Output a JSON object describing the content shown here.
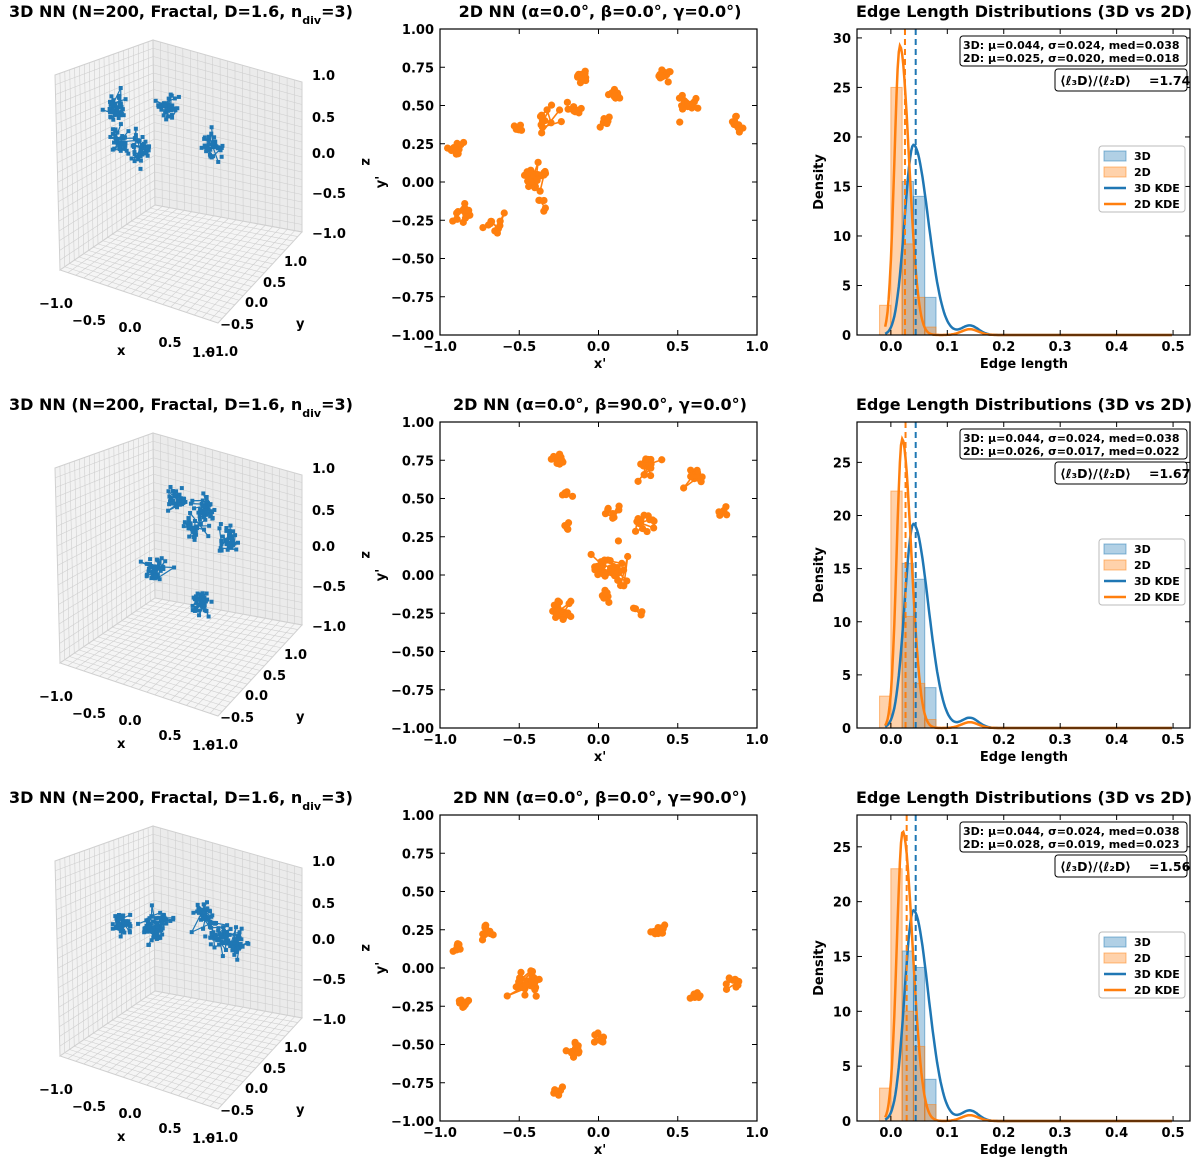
{
  "colors": {
    "c3d": "#1f77b4",
    "c2d": "#ff7f0e"
  },
  "chart_data": [
    {
      "type": "scatter",
      "kind": "3d-network",
      "title_main": "3D NN (N=200, Fractal, D=1.6, n",
      "title_sub": "div",
      "title_end": "=3)",
      "xlabel": "x",
      "ylabel": "y",
      "zlabel": "z",
      "x_ticks": [
        "−1.0",
        "−0.5",
        "0.0",
        "0.5",
        "1.0"
      ],
      "y_ticks": [
        "−1.0",
        "−0.5",
        "0.0",
        "0.5",
        "1.0"
      ],
      "z_ticks": [
        "−1.0",
        "−0.5",
        "0.0",
        "0.5",
        "1.0"
      ],
      "clusters": [
        [
          -0.85,
          -0.15,
          0.05
        ],
        [
          -0.5,
          0.05,
          0.05
        ],
        [
          -0.1,
          0.15,
          0.7
        ],
        [
          0.45,
          0.1,
          0.25
        ],
        [
          -0.9,
          -0.1,
          0.5
        ]
      ]
    },
    {
      "type": "scatter",
      "kind": "2d-network",
      "title": "2D NN (α=0.0°, β=0.0°, γ=0.0°)",
      "xlabel": "x'",
      "ylabel": "y'",
      "xlim": [
        -1,
        1
      ],
      "ylim": [
        -1,
        1
      ],
      "x_ticks": [
        "−1.0",
        "−0.5",
        "0.0",
        "0.5",
        "1.0"
      ],
      "y_ticks": [
        "1.00",
        "0.75",
        "0.50",
        "0.25",
        "0.00",
        "−0.25",
        "−0.50",
        "−0.75",
        "−1.00"
      ],
      "clusters": [
        [
          -0.9,
          0.22,
          0.07,
          12
        ],
        [
          -0.85,
          -0.2,
          0.08,
          14
        ],
        [
          -0.65,
          -0.28,
          0.08,
          12
        ],
        [
          -0.4,
          0.02,
          0.1,
          30
        ],
        [
          -0.3,
          0.38,
          0.12,
          12
        ],
        [
          -0.1,
          0.7,
          0.06,
          14
        ],
        [
          -0.15,
          0.48,
          0.06,
          8
        ],
        [
          0.05,
          0.4,
          0.06,
          6
        ],
        [
          0.1,
          0.57,
          0.06,
          8
        ],
        [
          0.4,
          0.7,
          0.06,
          14
        ],
        [
          0.55,
          0.5,
          0.12,
          14
        ],
        [
          0.88,
          0.38,
          0.06,
          10
        ],
        [
          -0.5,
          0.35,
          0.05,
          5
        ],
        [
          -0.35,
          -0.15,
          0.05,
          5
        ]
      ]
    },
    {
      "type": "bar",
      "kind": "histogram+kde",
      "title": "Edge Length Distributions (3D vs 2D)",
      "xlabel": "Edge length",
      "ylabel": "Density",
      "xlim": [
        -0.06,
        0.53
      ],
      "ylim": [
        0,
        30.9
      ],
      "x_ticks": [
        "0.0",
        "0.1",
        "0.2",
        "0.3",
        "0.4",
        "0.5"
      ],
      "y_ticks": [
        "0",
        "5",
        "10",
        "15",
        "20",
        "25",
        "30"
      ],
      "stats3d": "3D: μ=0.044, σ=0.024, med=0.038",
      "stats2d": "2D: μ=0.025, σ=0.020, med=0.018",
      "ratio_value": "=1.74",
      "bin_edges": [
        -0.02,
        0.0,
        0.02,
        0.04,
        0.06,
        0.08,
        0.1
      ],
      "hist3d": [
        0,
        0,
        15.5,
        14,
        3.8,
        0
      ],
      "hist2d": [
        3,
        25,
        9.2,
        3.8,
        0.8,
        0
      ],
      "kde3d_mean": 0.04,
      "kde3d_sd": 0.021,
      "kde3d_peak": 19.2,
      "kde2d_mean": 0.016,
      "kde2d_sd": 0.013,
      "kde2d_peak": 29.2,
      "mean3d": 0.044,
      "mean2d": 0.025,
      "legend": [
        "3D",
        "2D",
        "3D KDE",
        "2D KDE"
      ]
    },
    {
      "type": "scatter",
      "kind": "3d-network",
      "title_main": "3D NN (N=200, Fractal, D=1.6, n",
      "title_sub": "div",
      "title_end": "=3)",
      "xlabel": "x",
      "ylabel": "y",
      "zlabel": "z",
      "x_ticks": [
        "−1.0",
        "−0.5",
        "0.0",
        "0.5",
        "1.0"
      ],
      "y_ticks": [
        "−1.0",
        "−0.5",
        "0.0",
        "0.5",
        "1.0"
      ],
      "z_ticks": [
        "−1.0",
        "−0.5",
        "0.0",
        "0.5",
        "1.0"
      ],
      "clusters": [
        [
          -0.3,
          -0.4,
          0.5
        ],
        [
          0.0,
          -0.3,
          0.2
        ],
        [
          0.3,
          0.0,
          0.6
        ],
        [
          0.5,
          -0.2,
          0.15
        ],
        [
          -0.2,
          0.2,
          -0.2
        ],
        [
          0.2,
          -0.1,
          -0.7
        ]
      ]
    },
    {
      "type": "scatter",
      "kind": "2d-network",
      "title": "2D NN (α=0.0°, β=90.0°, γ=0.0°)",
      "xlabel": "x'",
      "ylabel": "y'",
      "xlim": [
        -1,
        1
      ],
      "ylim": [
        -1,
        1
      ],
      "x_ticks": [
        "−1.0",
        "−0.5",
        "0.0",
        "0.5",
        "1.0"
      ],
      "y_ticks": [
        "1.00",
        "0.75",
        "0.50",
        "0.25",
        "0.00",
        "−0.25",
        "−0.50",
        "−0.75",
        "−1.00"
      ],
      "clusters": [
        [
          -0.25,
          0.75,
          0.05,
          14
        ],
        [
          -0.2,
          0.52,
          0.05,
          6
        ],
        [
          -0.2,
          0.33,
          0.05,
          5
        ],
        [
          0.1,
          0.4,
          0.08,
          8
        ],
        [
          0.3,
          0.72,
          0.1,
          14
        ],
        [
          0.6,
          0.65,
          0.08,
          12
        ],
        [
          0.8,
          0.42,
          0.05,
          6
        ],
        [
          0.3,
          0.35,
          0.1,
          14
        ],
        [
          0.1,
          0.05,
          0.15,
          34
        ],
        [
          -0.25,
          -0.25,
          0.1,
          24
        ],
        [
          0.05,
          -0.15,
          0.08,
          8
        ],
        [
          0.25,
          -0.25,
          0.05,
          4
        ]
      ]
    },
    {
      "type": "bar",
      "kind": "histogram+kde",
      "title": "Edge Length Distributions (3D vs 2D)",
      "xlabel": "Edge length",
      "ylabel": "Density",
      "xlim": [
        -0.06,
        0.53
      ],
      "ylim": [
        0,
        28.8
      ],
      "x_ticks": [
        "0.0",
        "0.1",
        "0.2",
        "0.3",
        "0.4",
        "0.5"
      ],
      "y_ticks": [
        "0",
        "5",
        "10",
        "15",
        "20",
        "25"
      ],
      "stats3d": "3D: μ=0.044, σ=0.024, med=0.038",
      "stats2d": "2D: μ=0.026, σ=0.017, med=0.022",
      "ratio_value": "=1.67",
      "bin_edges": [
        -0.02,
        0.0,
        0.02,
        0.04,
        0.06,
        0.08,
        0.1
      ],
      "hist3d": [
        0,
        0,
        15.5,
        14,
        3.8,
        0
      ],
      "hist2d": [
        3,
        22.3,
        10.5,
        4.2,
        0.8,
        0
      ],
      "kde3d_mean": 0.04,
      "kde3d_sd": 0.021,
      "kde3d_peak": 19.2,
      "kde2d_mean": 0.02,
      "kde2d_sd": 0.013,
      "kde2d_peak": 27.2,
      "mean3d": 0.044,
      "mean2d": 0.026,
      "legend": [
        "3D",
        "2D",
        "3D KDE",
        "2D KDE"
      ]
    },
    {
      "type": "scatter",
      "kind": "3d-network",
      "title_main": "3D NN (N=200, Fractal, D=1.6, n",
      "title_sub": "div",
      "title_end": "=3)",
      "xlabel": "x",
      "ylabel": "y",
      "zlabel": "z",
      "x_ticks": [
        "−1.0",
        "−0.5",
        "0.0",
        "0.5",
        "1.0"
      ],
      "y_ticks": [
        "−1.0",
        "−0.5",
        "0.0",
        "0.5",
        "1.0"
      ],
      "z_ticks": [
        "−1.0",
        "−0.5",
        "0.0",
        "0.5",
        "1.0"
      ],
      "clusters": [
        [
          -0.75,
          0.0,
          0.15
        ],
        [
          -0.35,
          0.05,
          0.15
        ],
        [
          -0.15,
          0.2,
          0.35
        ],
        [
          0.5,
          0.3,
          0.55
        ],
        [
          0.55,
          0.1,
          0.2
        ],
        [
          0.6,
          -0.2,
          0.0
        ]
      ]
    },
    {
      "type": "scatter",
      "kind": "2d-network",
      "title": "2D NN (α=0.0°, β=0.0°, γ=90.0°)",
      "xlabel": "x'",
      "ylabel": "y'",
      "xlim": [
        -1,
        1
      ],
      "ylim": [
        -1,
        1
      ],
      "x_ticks": [
        "−1.0",
        "−0.5",
        "0.0",
        "0.5",
        "1.0"
      ],
      "y_ticks": [
        "1.00",
        "0.75",
        "0.50",
        "0.25",
        "0.00",
        "−0.25",
        "−0.50",
        "−0.75",
        "−1.00"
      ],
      "clusters": [
        [
          -0.9,
          0.12,
          0.05,
          8
        ],
        [
          -0.85,
          -0.22,
          0.06,
          10
        ],
        [
          -0.7,
          0.25,
          0.06,
          10
        ],
        [
          -0.45,
          -0.1,
          0.12,
          34
        ],
        [
          -0.15,
          -0.55,
          0.08,
          14
        ],
        [
          0.0,
          -0.45,
          0.06,
          8
        ],
        [
          -0.25,
          -0.78,
          0.06,
          6
        ],
        [
          0.38,
          0.25,
          0.06,
          16
        ],
        [
          0.62,
          -0.18,
          0.05,
          8
        ],
        [
          0.85,
          -0.1,
          0.06,
          10
        ]
      ]
    },
    {
      "type": "bar",
      "kind": "histogram+kde",
      "title": "Edge Length Distributions (3D vs 2D)",
      "xlabel": "Edge length",
      "ylabel": "Density",
      "xlim": [
        -0.06,
        0.53
      ],
      "ylim": [
        0,
        27.9
      ],
      "x_ticks": [
        "0.0",
        "0.1",
        "0.2",
        "0.3",
        "0.4",
        "0.5"
      ],
      "y_ticks": [
        "0",
        "5",
        "10",
        "15",
        "20",
        "25"
      ],
      "stats3d": "3D: μ=0.044, σ=0.024, med=0.038",
      "stats2d": "2D: μ=0.028, σ=0.019, med=0.023",
      "ratio_value": "=1.56",
      "bin_edges": [
        -0.02,
        0.0,
        0.02,
        0.04,
        0.06,
        0.08,
        0.1
      ],
      "hist3d": [
        0,
        0,
        15.5,
        14,
        3.8,
        0
      ],
      "hist2d": [
        3,
        23,
        10,
        6.8,
        1.5,
        0
      ],
      "kde3d_mean": 0.04,
      "kde3d_sd": 0.021,
      "kde3d_peak": 19.2,
      "kde2d_mean": 0.021,
      "kde2d_sd": 0.014,
      "kde2d_peak": 26.4,
      "mean3d": 0.044,
      "mean2d": 0.028,
      "legend": [
        "3D",
        "2D",
        "3D KDE",
        "2D KDE"
      ]
    }
  ]
}
